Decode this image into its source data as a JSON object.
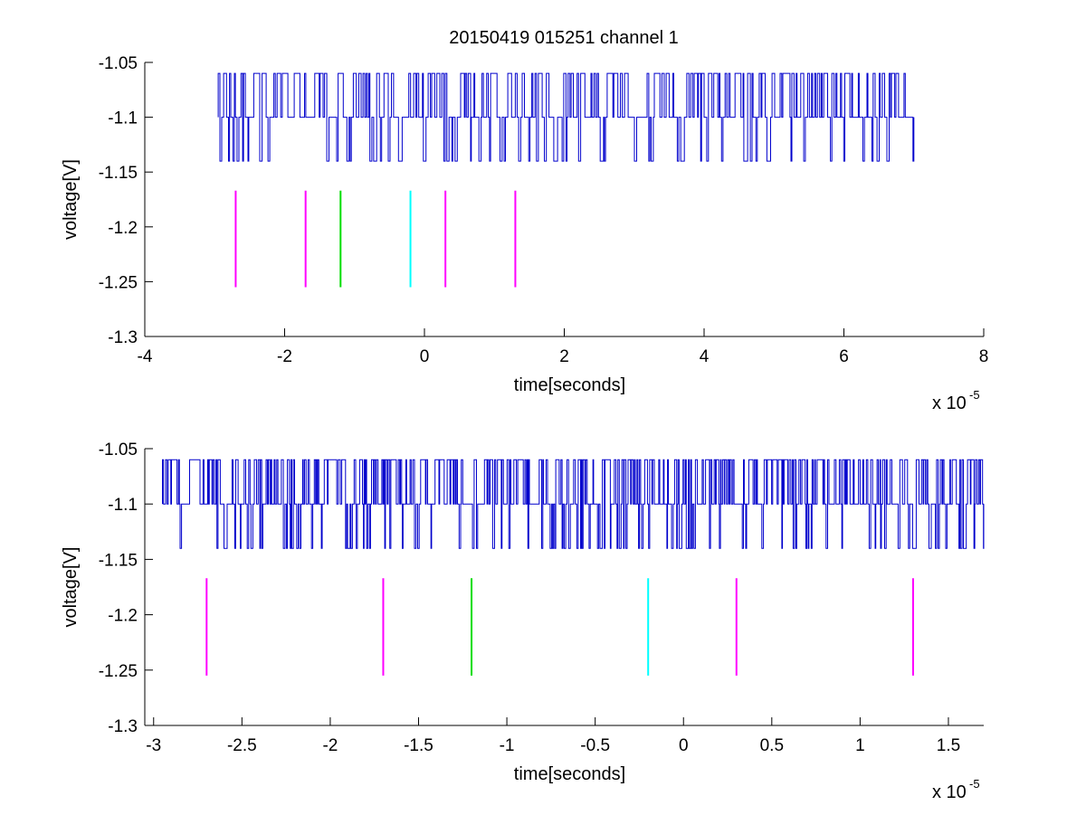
{
  "title": "20150419 015251 channel 1",
  "colors": {
    "signal": "#0000cc",
    "magenta": "#ff00ff",
    "green": "#00dd00",
    "cyan": "#00ffff",
    "axis": "#000000"
  },
  "chart_data": [
    {
      "type": "line",
      "title": "20150419 015251 channel 1",
      "xlabel": "time[seconds]",
      "ylabel": "voltage[V]",
      "x_multiplier_label": "x 10",
      "x_multiplier_exponent": "-5",
      "x_scale": 1e-05,
      "xlim": [
        -4,
        8
      ],
      "ylim": [
        -1.3,
        -1.05
      ],
      "xticks": [
        -4,
        -2,
        0,
        2,
        4,
        6,
        8
      ],
      "xtick_labels": [
        "-4",
        "-2",
        "0",
        "2",
        "4",
        "6",
        "8"
      ],
      "yticks": [
        -1.05,
        -1.1,
        -1.15,
        -1.2,
        -1.25,
        -1.3
      ],
      "ytick_labels": [
        "-1.05",
        "-1.1",
        "-1.15",
        "-1.2",
        "-1.25",
        "-1.3"
      ],
      "grid": false,
      "signal": {
        "x_start": -2.95,
        "x_end": 7.0,
        "baseline": -1.1,
        "levels": [
          -1.06,
          -1.1,
          -1.14
        ]
      },
      "markers": [
        {
          "x": -2.7,
          "y_top": -1.167,
          "y_bottom": -1.255,
          "color": "magenta"
        },
        {
          "x": -1.7,
          "y_top": -1.167,
          "y_bottom": -1.255,
          "color": "magenta"
        },
        {
          "x": -1.2,
          "y_top": -1.167,
          "y_bottom": -1.255,
          "color": "green"
        },
        {
          "x": -0.2,
          "y_top": -1.167,
          "y_bottom": -1.255,
          "color": "cyan"
        },
        {
          "x": 0.3,
          "y_top": -1.167,
          "y_bottom": -1.255,
          "color": "magenta"
        },
        {
          "x": 1.3,
          "y_top": -1.167,
          "y_bottom": -1.255,
          "color": "magenta"
        }
      ]
    },
    {
      "type": "line",
      "xlabel": "time[seconds]",
      "ylabel": "voltage[V]",
      "x_multiplier_label": "x 10",
      "x_multiplier_exponent": "-5",
      "x_scale": 1e-05,
      "xlim": [
        -3.05,
        1.7
      ],
      "ylim": [
        -1.3,
        -1.05
      ],
      "xticks": [
        -3,
        -2.5,
        -2,
        -1.5,
        -1,
        -0.5,
        0,
        0.5,
        1,
        1.5
      ],
      "xtick_labels": [
        "-3",
        "-2.5",
        "-2",
        "-1.5",
        "-1",
        "-0.5",
        "0",
        "0.5",
        "1",
        "1.5"
      ],
      "yticks": [
        -1.05,
        -1.1,
        -1.15,
        -1.2,
        -1.25,
        -1.3
      ],
      "ytick_labels": [
        "-1.05",
        "-1.1",
        "-1.15",
        "-1.2",
        "-1.25",
        "-1.3"
      ],
      "grid": false,
      "signal": {
        "x_start": -2.95,
        "x_end": 1.7,
        "baseline": -1.1,
        "levels": [
          -1.06,
          -1.1,
          -1.14
        ]
      },
      "markers": [
        {
          "x": -2.7,
          "y_top": -1.167,
          "y_bottom": -1.255,
          "color": "magenta"
        },
        {
          "x": -1.7,
          "y_top": -1.167,
          "y_bottom": -1.255,
          "color": "magenta"
        },
        {
          "x": -1.2,
          "y_top": -1.167,
          "y_bottom": -1.255,
          "color": "green"
        },
        {
          "x": -0.2,
          "y_top": -1.167,
          "y_bottom": -1.255,
          "color": "cyan"
        },
        {
          "x": 0.3,
          "y_top": -1.167,
          "y_bottom": -1.255,
          "color": "magenta"
        },
        {
          "x": 1.3,
          "y_top": -1.167,
          "y_bottom": -1.255,
          "color": "magenta"
        }
      ]
    }
  ]
}
